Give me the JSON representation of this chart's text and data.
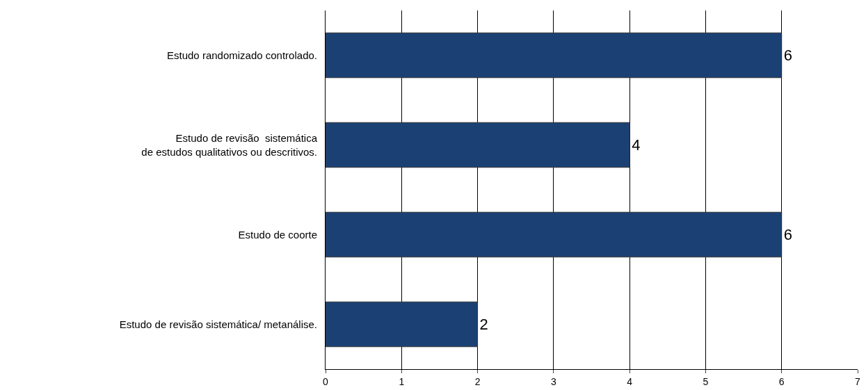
{
  "chart_data": {
    "type": "bar",
    "orientation": "horizontal",
    "categories": [
      "Estudo randomizado controlado.",
      "Estudo de revisão  sistemática\nde estudos qualitativos ou descritivos.",
      "Estudo de coorte",
      "Estudo de revisão sistemática/ metanálise."
    ],
    "values": [
      6,
      4,
      6,
      2
    ],
    "color": "#1b4174",
    "xlim": [
      0,
      7
    ],
    "xticks": [
      0,
      1,
      2,
      3,
      4,
      5,
      6,
      7
    ],
    "grid": "x",
    "data_labels": true
  }
}
